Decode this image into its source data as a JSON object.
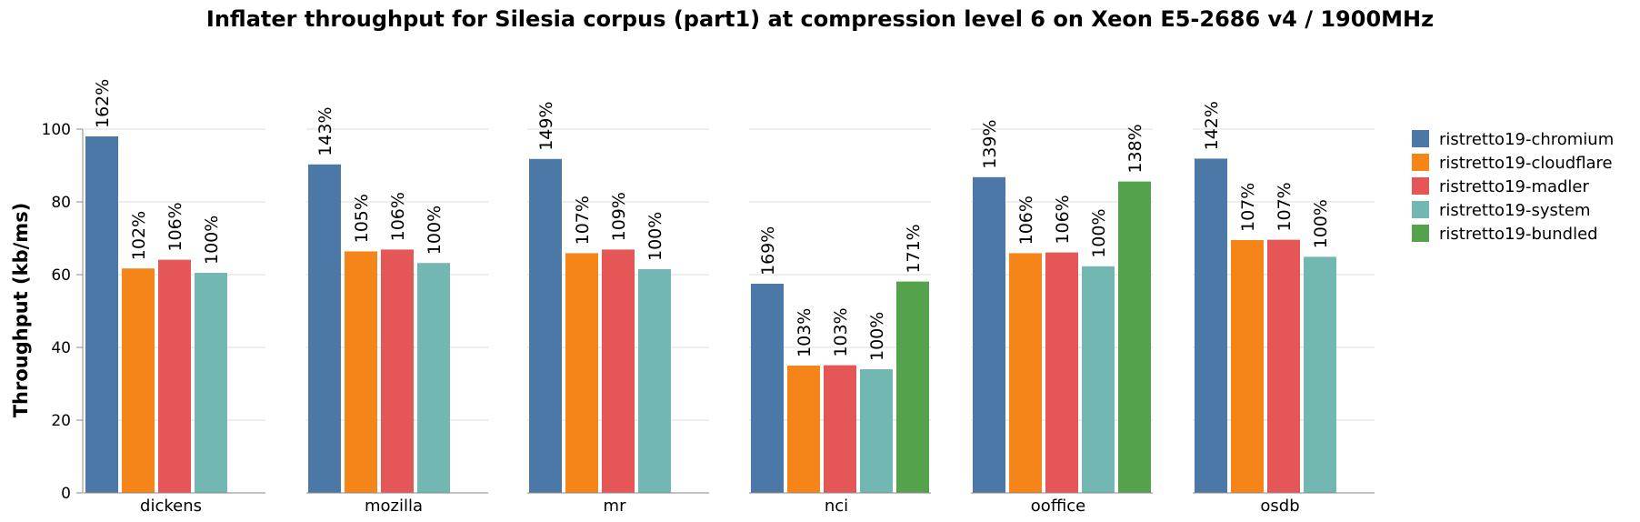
{
  "chart_data": {
    "type": "bar",
    "title": "Inflater throughput for Silesia corpus (part1) at compression level 6 on Xeon E5-2686 v4 / 1900MHz",
    "xlabel": "",
    "ylabel": "Throughput (kb/ms)",
    "ylim": [
      0,
      100
    ],
    "yticks": [
      0,
      20,
      40,
      60,
      80,
      100
    ],
    "grid": true,
    "legend_position": "right",
    "categories": [
      "dickens",
      "mozilla",
      "mr",
      "nci",
      "ooffice",
      "osdb"
    ],
    "series": [
      {
        "name": "ristretto19-chromium",
        "color": "#4c78a8",
        "values": [
          98.0,
          90.3,
          91.8,
          57.5,
          86.8,
          91.9
        ],
        "labels": [
          "162%",
          "143%",
          "149%",
          "169%",
          "139%",
          "142%"
        ]
      },
      {
        "name": "ristretto19-cloudflare",
        "color": "#f58518",
        "values": [
          61.7,
          66.4,
          65.9,
          35.0,
          65.9,
          69.5
        ],
        "labels": [
          "102%",
          "105%",
          "107%",
          "103%",
          "106%",
          "107%"
        ]
      },
      {
        "name": "ristretto19-madler",
        "color": "#e45756",
        "values": [
          64.1,
          66.9,
          66.9,
          35.1,
          66.1,
          69.6
        ],
        "labels": [
          "106%",
          "106%",
          "109%",
          "103%",
          "106%",
          "107%"
        ]
      },
      {
        "name": "ristretto19-system",
        "color": "#72b7b2",
        "values": [
          60.5,
          63.2,
          61.5,
          34.0,
          62.3,
          64.9
        ],
        "labels": [
          "100%",
          "100%",
          "100%",
          "100%",
          "100%",
          "100%"
        ]
      },
      {
        "name": "ristretto19-bundled",
        "color": "#54a24b",
        "values": [
          null,
          null,
          null,
          58.1,
          85.6,
          null
        ],
        "labels": [
          null,
          null,
          null,
          "171%",
          "138%",
          null
        ]
      }
    ]
  }
}
